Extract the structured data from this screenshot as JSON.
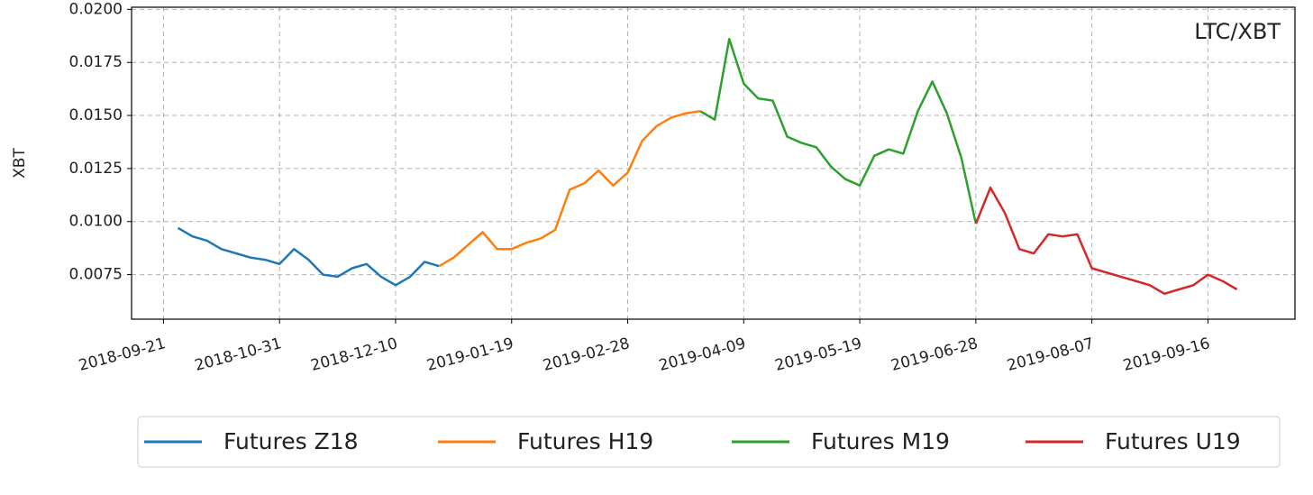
{
  "chart_data": {
    "type": "line",
    "y_label": "XBT",
    "annotation": "LTC/XBT",
    "annotation_color": "#0000ff",
    "grid": true,
    "legend": "bottom",
    "x": [
      "2018-09-26",
      "2018-10-01",
      "2018-10-06",
      "2018-10-11",
      "2018-10-16",
      "2018-10-21",
      "2018-10-26",
      "2018-10-31",
      "2018-11-05",
      "2018-11-10",
      "2018-11-15",
      "2018-11-20",
      "2018-11-25",
      "2018-11-30",
      "2018-12-05",
      "2018-12-10",
      "2018-12-15",
      "2018-12-20",
      "2018-12-25",
      "2018-12-30",
      "2019-01-04",
      "2019-01-09",
      "2019-01-14",
      "2019-01-19",
      "2019-01-24",
      "2019-01-29",
      "2019-02-03",
      "2019-02-08",
      "2019-02-13",
      "2019-02-18",
      "2019-02-23",
      "2019-02-28",
      "2019-03-05",
      "2019-03-10",
      "2019-03-15",
      "2019-03-20",
      "2019-03-25",
      "2019-03-30",
      "2019-04-04",
      "2019-04-09",
      "2019-04-14",
      "2019-04-19",
      "2019-04-24",
      "2019-04-29",
      "2019-05-04",
      "2019-05-09",
      "2019-05-14",
      "2019-05-19",
      "2019-05-24",
      "2019-05-29",
      "2019-06-03",
      "2019-06-08",
      "2019-06-13",
      "2019-06-18",
      "2019-06-23",
      "2019-06-28",
      "2019-07-03",
      "2019-07-08",
      "2019-07-13",
      "2019-07-18",
      "2019-07-23",
      "2019-07-28",
      "2019-08-02",
      "2019-08-07",
      "2019-08-12",
      "2019-08-17",
      "2019-08-22",
      "2019-08-27",
      "2019-09-01",
      "2019-09-06",
      "2019-09-11",
      "2019-09-16",
      "2019-09-21",
      "2019-09-26"
    ],
    "series": [
      {
        "name": "Futures Z18",
        "color": "#1f77b4",
        "values": [
          0.0097,
          0.0093,
          0.0091,
          0.0087,
          0.0085,
          0.0083,
          0.0082,
          0.008,
          0.0087,
          0.0082,
          0.0075,
          0.0074,
          0.0078,
          0.008,
          0.0074,
          0.007,
          0.0074,
          0.0081,
          0.0079,
          null,
          null,
          null,
          null,
          null,
          null,
          null,
          null,
          null,
          null,
          null,
          null,
          null,
          null,
          null,
          null,
          null,
          null,
          null,
          null,
          null,
          null,
          null,
          null,
          null,
          null,
          null,
          null,
          null,
          null,
          null,
          null,
          null,
          null,
          null,
          null,
          null,
          null,
          null,
          null,
          null,
          null,
          null,
          null,
          null,
          null,
          null,
          null,
          null,
          null,
          null,
          null,
          null,
          null,
          null
        ]
      },
      {
        "name": "Futures H19",
        "color": "#ff7f0e",
        "values": [
          null,
          null,
          null,
          null,
          null,
          null,
          null,
          null,
          null,
          null,
          null,
          null,
          null,
          null,
          null,
          null,
          null,
          null,
          0.0079,
          0.0083,
          0.0089,
          0.0095,
          0.0087,
          0.0087,
          0.009,
          0.0092,
          0.0096,
          0.0115,
          0.0118,
          0.0124,
          0.0117,
          0.0123,
          0.0138,
          0.0145,
          0.0149,
          0.0151,
          0.0152,
          null,
          null,
          null,
          null,
          null,
          null,
          null,
          null,
          null,
          null,
          null,
          null,
          null,
          null,
          null,
          null,
          null,
          null,
          null,
          null,
          null,
          null,
          null,
          null,
          null,
          null,
          null,
          null,
          null,
          null,
          null,
          null,
          null,
          null,
          null,
          null,
          null
        ]
      },
      {
        "name": "Futures M19",
        "color": "#2ca02c",
        "values": [
          null,
          null,
          null,
          null,
          null,
          null,
          null,
          null,
          null,
          null,
          null,
          null,
          null,
          null,
          null,
          null,
          null,
          null,
          null,
          null,
          null,
          null,
          null,
          null,
          null,
          null,
          null,
          null,
          null,
          null,
          null,
          null,
          null,
          null,
          null,
          null,
          0.0152,
          0.0148,
          0.0186,
          0.0165,
          0.0158,
          0.0157,
          0.014,
          0.0137,
          0.0135,
          0.0126,
          0.012,
          0.0117,
          0.0131,
          0.0134,
          0.0132,
          0.0152,
          0.0166,
          0.0151,
          0.013,
          0.0099,
          null,
          null,
          null,
          null,
          null,
          null,
          null,
          null,
          null,
          null,
          null,
          null,
          null,
          null,
          null,
          null,
          null,
          null
        ]
      },
      {
        "name": "Futures U19",
        "color": "#d62728",
        "values": [
          null,
          null,
          null,
          null,
          null,
          null,
          null,
          null,
          null,
          null,
          null,
          null,
          null,
          null,
          null,
          null,
          null,
          null,
          null,
          null,
          null,
          null,
          null,
          null,
          null,
          null,
          null,
          null,
          null,
          null,
          null,
          null,
          null,
          null,
          null,
          null,
          null,
          null,
          null,
          null,
          null,
          null,
          null,
          null,
          null,
          null,
          null,
          null,
          null,
          null,
          null,
          null,
          null,
          null,
          null,
          0.0099,
          0.0116,
          0.0104,
          0.0087,
          0.0085,
          0.0094,
          0.0093,
          0.0094,
          0.0078,
          0.0076,
          0.0074,
          0.0072,
          0.007,
          0.0066,
          0.0068,
          0.007,
          0.0075,
          0.0072,
          0.0068
        ]
      }
    ],
    "xlim": [
      "2018-09-10",
      "2019-10-16"
    ],
    "xticks": [
      "2018-09-21",
      "2018-10-31",
      "2018-12-10",
      "2019-01-19",
      "2019-02-28",
      "2019-04-09",
      "2019-05-19",
      "2019-06-28",
      "2019-08-07",
      "2019-09-16"
    ],
    "ylim": [
      0.0054,
      0.0201
    ],
    "yticks": [
      0.0075,
      {
        "value": 0.01,
        "label": "0.0100"
      },
      0.0125,
      {
        "value": 0.015,
        "label": "0.0150"
      },
      0.0175,
      {
        "value": 0.02,
        "label": "0.0200"
      }
    ]
  }
}
